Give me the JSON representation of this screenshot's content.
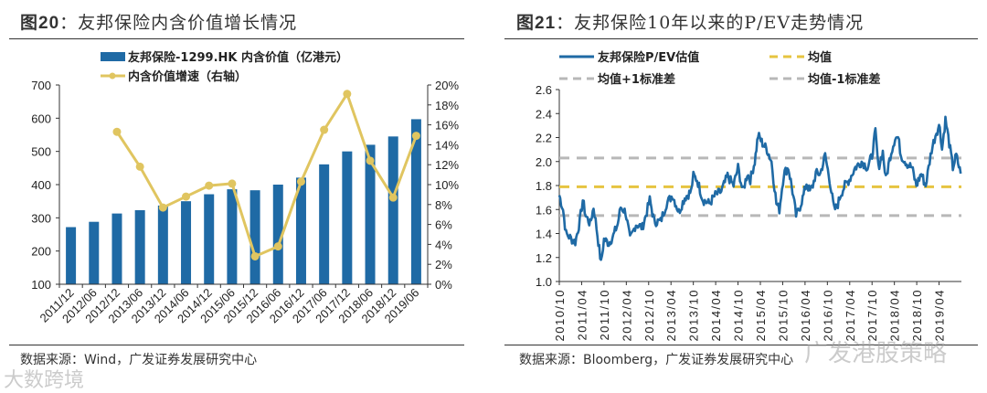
{
  "left": {
    "fig_no": "图20",
    "title": "：友邦保险内含价值增长情况",
    "source": "数据来源：Wind，广发证券发展研究中心"
  },
  "right": {
    "fig_no": "图21",
    "title": "：友邦保险10年以来的P/EV走势情况",
    "source": "数据来源：Bloomberg，广发证券发展研究中心"
  },
  "watermarks": [
    "大数跨境",
    "广发港股策略"
  ],
  "colors": {
    "bar": "#1f6aa5",
    "growth": "#e0c560",
    "pev": "#1f6aa5",
    "mean": "#e6c440",
    "std": "#b8b8b8"
  },
  "chart_data": [
    {
      "type": "bar",
      "title": "友邦保险内含价值增长情况",
      "categories": [
        "2011/12",
        "2012/06",
        "2012/12",
        "2013/06",
        "2013/12",
        "2014/06",
        "2014/12",
        "2015/06",
        "2015/12",
        "2016/06",
        "2016/12",
        "2017/06",
        "2017/12",
        "2018/06",
        "2018/12",
        "2019/06"
      ],
      "series": [
        {
          "name": "友邦保险-1299.HK 内含价值（亿港元）",
          "axis": "left",
          "type": "bar",
          "values": [
            272,
            288,
            313,
            323,
            337,
            350,
            371,
            386,
            383,
            400,
            421,
            461,
            500,
            520,
            545,
            597
          ]
        },
        {
          "name": "内含价值增速（右轴）",
          "axis": "right",
          "type": "line",
          "values": [
            null,
            null,
            15.3,
            11.8,
            7.7,
            8.8,
            9.9,
            10.1,
            2.8,
            3.8,
            10.3,
            15.5,
            19.1,
            12.4,
            8.7,
            14.9
          ]
        }
      ],
      "ylim": [
        100,
        700
      ],
      "yticks": [
        "100",
        "200",
        "300",
        "400",
        "500",
        "600",
        "700"
      ],
      "y2lim": [
        0,
        20
      ],
      "y2ticks": [
        "0%",
        "2%",
        "4%",
        "6%",
        "8%",
        "10%",
        "12%",
        "14%",
        "16%",
        "18%",
        "20%"
      ],
      "legend": "top"
    },
    {
      "type": "line",
      "title": "友邦保险10年以来的P/EV走势情况",
      "x_unit": "months since 2010/10",
      "xticks": [
        "2010/10",
        "2011/04",
        "2011/10",
        "2012/04",
        "2012/10",
        "2013/04",
        "2013/10",
        "2014/04",
        "2014/10",
        "2015/04",
        "2015/10",
        "2016/04",
        "2016/10",
        "2017/04",
        "2017/10",
        "2018/04",
        "2018/10",
        "2019/04"
      ],
      "ylim": [
        1.0,
        2.6
      ],
      "yticks": [
        "1.0",
        "1.2",
        "1.4",
        "1.6",
        "1.8",
        "2.0",
        "2.2",
        "2.4",
        "2.6"
      ],
      "series": [
        {
          "name": "友邦保险P/EV估值",
          "points": [
            [
              0,
              1.72
            ],
            [
              1.0,
              1.6
            ],
            [
              1.8,
              1.4
            ],
            [
              3.4,
              1.35
            ],
            [
              4.3,
              1.33
            ],
            [
              5.5,
              1.5
            ],
            [
              6.3,
              1.68
            ],
            [
              7.1,
              1.55
            ],
            [
              8.3,
              1.48
            ],
            [
              9.2,
              1.62
            ],
            [
              10.0,
              1.45
            ],
            [
              11.2,
              1.15
            ],
            [
              12.0,
              1.35
            ],
            [
              13.3,
              1.32
            ],
            [
              14.5,
              1.38
            ],
            [
              15.7,
              1.48
            ],
            [
              16.5,
              1.62
            ],
            [
              17.8,
              1.58
            ],
            [
              19.0,
              1.35
            ],
            [
              20.6,
              1.48
            ],
            [
              22.3,
              1.45
            ],
            [
              23.5,
              1.58
            ],
            [
              24.3,
              1.68
            ],
            [
              25.5,
              1.5
            ],
            [
              27.2,
              1.5
            ],
            [
              28.8,
              1.65
            ],
            [
              30.4,
              1.72
            ],
            [
              32.1,
              1.58
            ],
            [
              33.7,
              1.7
            ],
            [
              35.4,
              1.75
            ],
            [
              36.0,
              1.88
            ],
            [
              37.0,
              1.85
            ],
            [
              38.6,
              1.68
            ],
            [
              40.3,
              1.65
            ],
            [
              41.9,
              1.72
            ],
            [
              43.5,
              1.75
            ],
            [
              45.2,
              1.88
            ],
            [
              46.8,
              1.8
            ],
            [
              48.0,
              1.95
            ],
            [
              49.3,
              1.75
            ],
            [
              50.5,
              1.9
            ],
            [
              51.3,
              1.85
            ],
            [
              52.5,
              2.0
            ],
            [
              53.4,
              2.22
            ],
            [
              54.6,
              2.15
            ],
            [
              55.8,
              2.1
            ],
            [
              57.0,
              2.0
            ],
            [
              58.3,
              1.65
            ],
            [
              59.1,
              1.6
            ],
            [
              60.3,
              1.9
            ],
            [
              61.5,
              1.95
            ],
            [
              62.4,
              1.8
            ],
            [
              63.6,
              1.55
            ],
            [
              64.4,
              1.6
            ],
            [
              65.6,
              1.72
            ],
            [
              66.4,
              1.82
            ],
            [
              67.3,
              1.75
            ],
            [
              68.1,
              1.8
            ],
            [
              68.9,
              1.9
            ],
            [
              70.1,
              1.9
            ],
            [
              71.4,
              2.05
            ],
            [
              72.6,
              1.85
            ],
            [
              73.8,
              1.6
            ],
            [
              74.6,
              1.62
            ],
            [
              75.5,
              1.72
            ],
            [
              76.7,
              1.8
            ],
            [
              77.9,
              1.85
            ],
            [
              79.5,
              1.95
            ],
            [
              81.2,
              2.0
            ],
            [
              82.8,
              1.95
            ],
            [
              84.0,
              2.05
            ],
            [
              84.9,
              2.25
            ],
            [
              85.7,
              1.95
            ],
            [
              86.9,
              2.08
            ],
            [
              87.7,
              1.85
            ],
            [
              88.9,
              2.05
            ],
            [
              90.2,
              2.2
            ],
            [
              91.0,
              2.2
            ],
            [
              91.8,
              2.05
            ],
            [
              93.5,
              1.98
            ],
            [
              94.7,
              1.95
            ],
            [
              95.9,
              1.8
            ],
            [
              97.2,
              1.9
            ],
            [
              98.4,
              1.8
            ],
            [
              100.0,
              2.1
            ],
            [
              101.3,
              2.25
            ],
            [
              102.2,
              2.3
            ],
            [
              102.8,
              2.1
            ],
            [
              103.7,
              2.35
            ],
            [
              104.5,
              2.2
            ],
            [
              105.7,
              1.95
            ],
            [
              106.6,
              2.05
            ],
            [
              107.8,
              1.9
            ]
          ]
        },
        {
          "name": "均值",
          "constant": 1.79
        },
        {
          "name": "均值+1标准差",
          "constant": 2.03
        },
        {
          "name": "均值-1标准差",
          "constant": 1.55
        }
      ],
      "x_max": 108,
      "legend": "top"
    }
  ]
}
